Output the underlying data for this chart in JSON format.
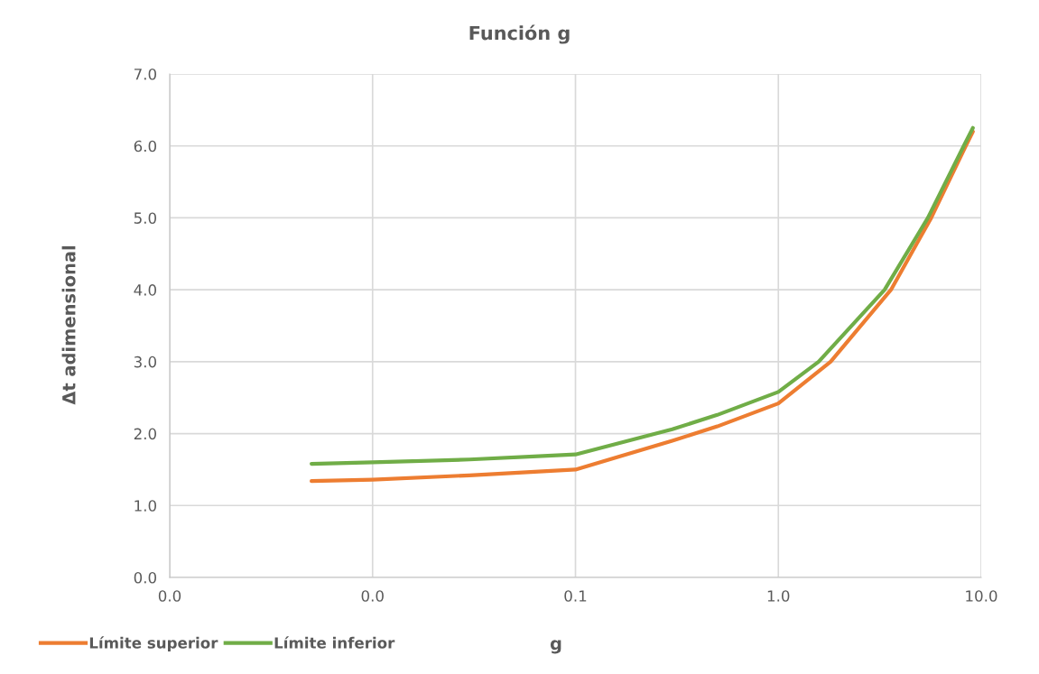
{
  "chart_data": {
    "type": "line",
    "title": "Función g",
    "xlabel": "g",
    "ylabel": "Δt adimensional",
    "log": "x",
    "xlim": [
      0.001,
      10
    ],
    "xticks": [
      {
        "value": 0.001,
        "label": "0.0"
      },
      {
        "value": 0.01,
        "label": "0.0"
      },
      {
        "value": 0.1,
        "label": "0.1"
      },
      {
        "value": 1,
        "label": "1.0"
      },
      {
        "value": 10,
        "label": "10.0"
      }
    ],
    "ylim": [
      0,
      7
    ],
    "yticks": [
      {
        "value": 0,
        "label": "0.0"
      },
      {
        "value": 1,
        "label": "1.0"
      },
      {
        "value": 2,
        "label": "2.0"
      },
      {
        "value": 3,
        "label": "3.0"
      },
      {
        "value": 4,
        "label": "4.0"
      },
      {
        "value": 5,
        "label": "5.0"
      },
      {
        "value": 6,
        "label": "6.0"
      },
      {
        "value": 7,
        "label": "7.0"
      }
    ],
    "grid": true,
    "legend": "bottom left",
    "marker": "none",
    "line_style": "solid",
    "series": [
      {
        "name": "Límite superior",
        "color": "#ed7d31",
        "x": [
          0.005,
          0.01,
          0.03,
          0.1,
          0.3,
          0.5,
          1,
          1.81,
          3.59,
          5.67,
          8.4,
          9.1
        ],
        "values": [
          1.34,
          1.36,
          1.42,
          1.5,
          1.9,
          2.1,
          2.42,
          3.0,
          4.0,
          5.0,
          6.0,
          6.2
        ]
      },
      {
        "name": "Límite inferior",
        "color": "#70ad47",
        "x": [
          0.005,
          0.01,
          0.03,
          0.1,
          0.3,
          0.5,
          1,
          1.58,
          3.34,
          5.46,
          8.2,
          9.1
        ],
        "values": [
          1.58,
          1.6,
          1.64,
          1.71,
          2.06,
          2.26,
          2.58,
          3.0,
          4.0,
          5.0,
          6.0,
          6.25
        ]
      }
    ]
  }
}
